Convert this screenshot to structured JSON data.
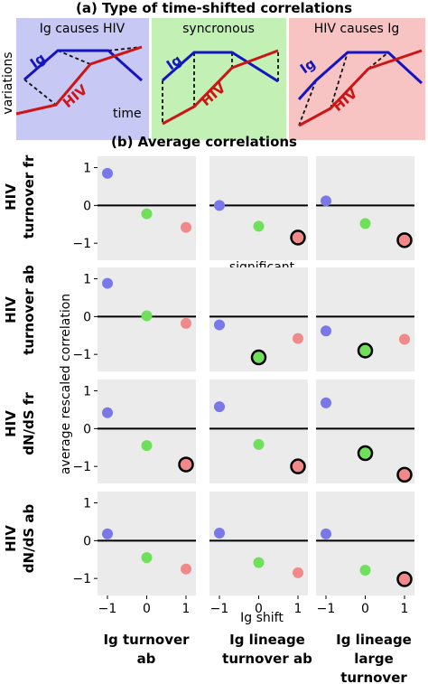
{
  "title_a": "(a) Type of time-shifted correlations",
  "title_b": "(b) Average correlations",
  "panel_a": {
    "ylabel": "variations",
    "xlabel": "time",
    "cards": [
      {
        "title": "Ig causes HIV",
        "bg": "#c8c8f5",
        "ig_label": "Ig",
        "hiv_label": "HIV"
      },
      {
        "title": "syncronous",
        "bg": "#c3f0b4",
        "ig_label": "Ig",
        "hiv_label": "HIV"
      },
      {
        "title": "HIV causes Ig",
        "bg": "#f7c3c3",
        "ig_label": "Ig",
        "hiv_label": "HIV"
      }
    ]
  },
  "colors": {
    "ig": "#1515c0",
    "hiv": "#cc1515",
    "blue_dot": "#7878e8",
    "green_dot": "#6ee05a",
    "red_dot": "#f08a8a",
    "panel_bg": "#ebebeb"
  },
  "labels": {
    "y_axis": "average rescaled correlation",
    "x_axis": "Ig shift",
    "annotation": "significant",
    "rows": [
      [
        "HIV",
        "turnover fr"
      ],
      [
        "HIV",
        "turnover ab"
      ],
      [
        "HIV",
        "dN/dS fr"
      ],
      [
        "HIV",
        "dN/dS ab"
      ]
    ],
    "cols": [
      [
        "Ig turnover",
        "ab"
      ],
      [
        "Ig lineage",
        "turnover ab"
      ],
      [
        "Ig lineage",
        "large",
        "turnover"
      ]
    ]
  },
  "chart_data": {
    "type": "scatter",
    "x": [
      -1,
      0,
      1
    ],
    "x_ticks": [
      "−1",
      "0",
      "1"
    ],
    "y_ticks": [
      "1",
      "0",
      "−1"
    ],
    "ylim": [
      -1.45,
      1.3
    ],
    "panels": [
      [
        {
          "values": [
            0.85,
            -0.22,
            -0.58
          ],
          "significant": [
            false,
            false,
            false
          ]
        },
        {
          "values": [
            0.0,
            -0.55,
            -0.85
          ],
          "significant": [
            false,
            false,
            true
          ]
        },
        {
          "values": [
            0.12,
            -0.48,
            -0.92
          ],
          "significant": [
            false,
            false,
            true
          ]
        }
      ],
      [
        {
          "values": [
            0.88,
            0.02,
            -0.18
          ],
          "significant": [
            false,
            false,
            false
          ]
        },
        {
          "values": [
            -0.22,
            -1.08,
            -0.58
          ],
          "significant": [
            false,
            true,
            false
          ]
        },
        {
          "values": [
            -0.38,
            -0.9,
            -0.6
          ],
          "significant": [
            false,
            true,
            false
          ]
        }
      ],
      [
        {
          "values": [
            0.42,
            -0.45,
            -0.95
          ],
          "significant": [
            false,
            false,
            true
          ]
        },
        {
          "values": [
            0.58,
            -0.42,
            -1.0
          ],
          "significant": [
            false,
            false,
            true
          ]
        },
        {
          "values": [
            0.68,
            -0.65,
            -1.22
          ],
          "significant": [
            false,
            true,
            true
          ]
        }
      ],
      [
        {
          "values": [
            0.18,
            -0.45,
            -0.75
          ],
          "significant": [
            false,
            false,
            false
          ]
        },
        {
          "values": [
            0.2,
            -0.58,
            -0.85
          ],
          "significant": [
            false,
            false,
            false
          ]
        },
        {
          "values": [
            0.18,
            -0.78,
            -1.02
          ],
          "significant": [
            false,
            false,
            true
          ]
        }
      ]
    ]
  }
}
